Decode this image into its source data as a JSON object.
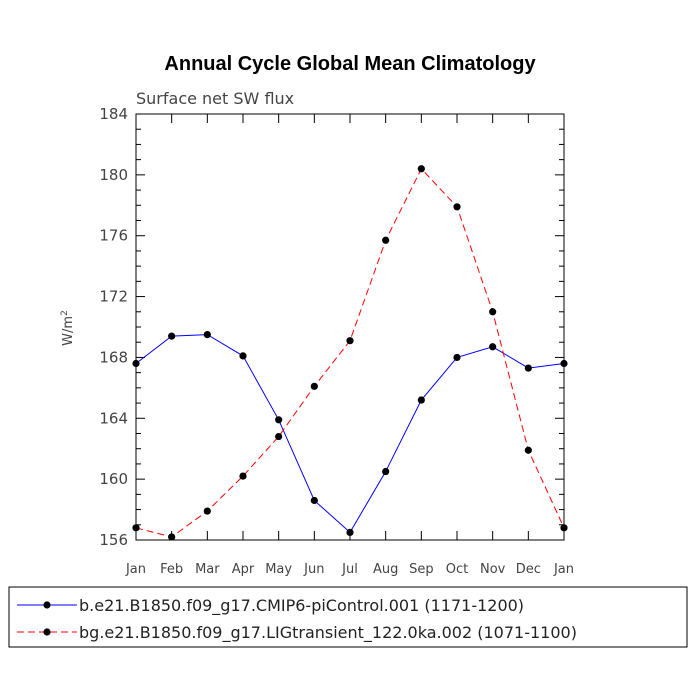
{
  "chart_data": {
    "type": "line",
    "title": "Annual Cycle Global Mean Climatology",
    "subtitle": "Surface net SW flux",
    "ylabel": "W/m",
    "ylabel_sup": "2",
    "xlabel": "",
    "categories": [
      "Jan",
      "Feb",
      "Mar",
      "Apr",
      "May",
      "Jun",
      "Jul",
      "Aug",
      "Sep",
      "Oct",
      "Nov",
      "Dec",
      "Jan"
    ],
    "ylim": [
      156,
      184
    ],
    "yticks": [
      "156",
      "160",
      "164",
      "168",
      "172",
      "176",
      "180",
      "184"
    ],
    "grid": false,
    "legend_position": "bottom",
    "series": [
      {
        "name": "b.e21.B1850.f09_g17.CMIP6-piControl.001 (1171-1200)",
        "color": "#0000ff",
        "dash": "solid",
        "values": [
          167.6,
          169.4,
          169.5,
          168.1,
          163.9,
          158.6,
          156.5,
          160.5,
          165.2,
          168.0,
          168.7,
          167.3,
          167.6
        ]
      },
      {
        "name": "bg.e21.B1850.f09_g17.LIGtransient_122.0ka.002 (1071-1100)",
        "color": "#ff0000",
        "dash": "dashed",
        "values": [
          156.8,
          156.2,
          157.9,
          160.2,
          162.8,
          166.1,
          169.1,
          175.7,
          180.4,
          177.9,
          171.0,
          161.9,
          156.8
        ]
      }
    ]
  }
}
